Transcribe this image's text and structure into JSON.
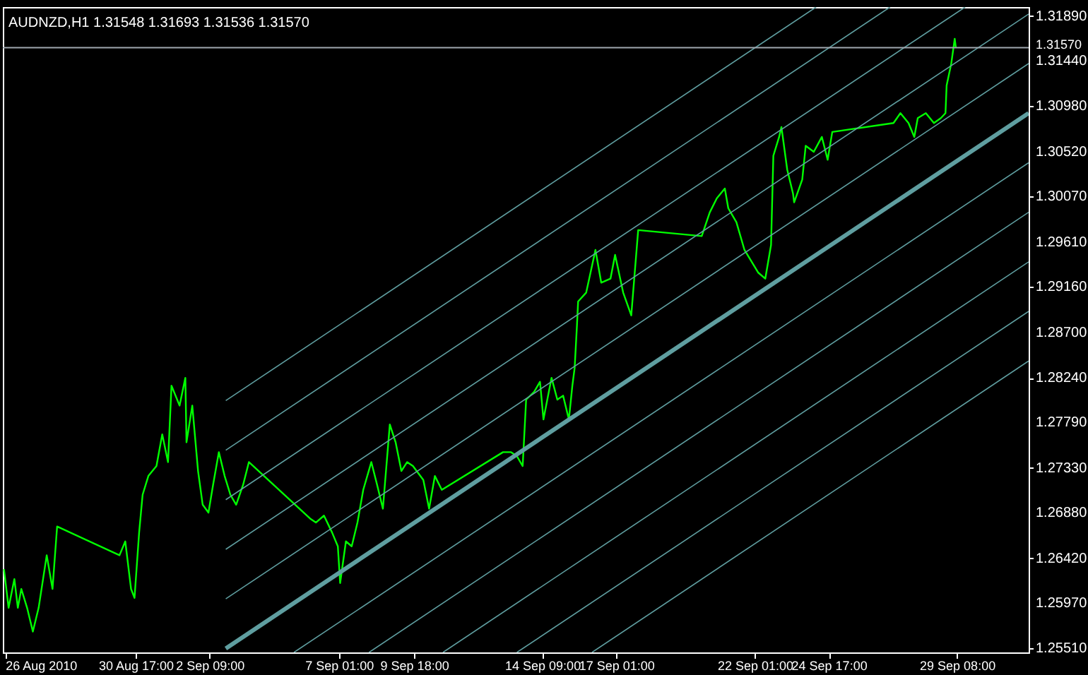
{
  "chart_data": {
    "type": "line",
    "title": "AUDNZD,H1  1.31548 1.31693 1.31536 1.31570",
    "xlim": [
      "2010-08-25T22:00",
      "2010-10-01T22:00"
    ],
    "ylim": [
      1.2547,
      1.3198
    ],
    "xticks": [
      {
        "value": "2010-08-26T00:00",
        "label": "26 Aug 2010"
      },
      {
        "value": "2010-08-30T17:00",
        "label": "30 Aug 17:00"
      },
      {
        "value": "2010-09-02T09:00",
        "label": "2 Sep 09:00"
      },
      {
        "value": "2010-09-07T01:00",
        "label": "7 Sep 01:00"
      },
      {
        "value": "2010-09-09T18:00",
        "label": "9 Sep 18:00"
      },
      {
        "value": "2010-09-14T09:00",
        "label": "14 Sep 09:00"
      },
      {
        "value": "2010-09-17T01:00",
        "label": "17 Sep 01:00"
      },
      {
        "value": "2010-09-22T01:00",
        "label": "22 Sep 01:00"
      },
      {
        "value": "2010-09-24T17:00",
        "label": "24 Sep 17:00"
      },
      {
        "value": "2010-09-29T08:00",
        "label": "29 Sep 08:00"
      }
    ],
    "yticks": [
      {
        "value": 1.3189,
        "label": "1.31890"
      },
      {
        "value": 1.3144,
        "label": "1.31440"
      },
      {
        "value": 1.3098,
        "label": "1.30980"
      },
      {
        "value": 1.3052,
        "label": "1.30520"
      },
      {
        "value": 1.3007,
        "label": "1.30070"
      },
      {
        "value": 1.2961,
        "label": "1.29610"
      },
      {
        "value": 1.2916,
        "label": "1.29160"
      },
      {
        "value": 1.287,
        "label": "1.28700"
      },
      {
        "value": 1.2824,
        "label": "1.28240"
      },
      {
        "value": 1.2779,
        "label": "1.27790"
      },
      {
        "value": 1.2733,
        "label": "1.27330"
      },
      {
        "value": 1.2688,
        "label": "1.26880"
      },
      {
        "value": 1.2642,
        "label": "1.26420"
      },
      {
        "value": 1.2597,
        "label": "1.25970"
      },
      {
        "value": 1.2551,
        "label": "1.25510"
      }
    ],
    "ref_lines": [
      {
        "axis": "y",
        "value": 1.3157,
        "label": "1.31570",
        "color": "#a0a8b0"
      }
    ],
    "series": [
      {
        "color": "#00ff00",
        "x": [
          "2010-08-25T23:00",
          "2010-08-26T03:00",
          "2010-08-26T08:00",
          "2010-08-26T11:00",
          "2010-08-26T14:00",
          "2010-08-26T19:00",
          "2010-08-27T00:00",
          "2010-08-27T05:00",
          "2010-08-27T12:00",
          "2010-08-27T17:00",
          "2010-08-27T21:00",
          "2010-08-30T03:00",
          "2010-08-30T08:00",
          "2010-08-30T13:00",
          "2010-08-30T16:00",
          "2010-08-30T20:00",
          "2010-08-30T23:00",
          "2010-08-31T04:00",
          "2010-08-31T11:00",
          "2010-08-31T16:00",
          "2010-08-31T21:00",
          "2010-09-01T00:00",
          "2010-09-01T07:00",
          "2010-09-01T12:00",
          "2010-09-01T13:00",
          "2010-09-01T18:00",
          "2010-09-01T23:00",
          "2010-09-02T03:00",
          "2010-09-02T08:00",
          "2010-09-02T12:00",
          "2010-09-02T17:00",
          "2010-09-02T22:00",
          "2010-09-03T03:00",
          "2010-09-03T08:00",
          "2010-09-03T14:00",
          "2010-09-03T19:00",
          "2010-09-06T00:00",
          "2010-09-06T05:00",
          "2010-09-06T12:00",
          "2010-09-06T19:00",
          "2010-09-07T00:00",
          "2010-09-07T02:00",
          "2010-09-07T07:00",
          "2010-09-07T12:00",
          "2010-09-07T17:00",
          "2010-09-07T22:00",
          "2010-09-08T05:00",
          "2010-09-08T10:00",
          "2010-09-08T15:00",
          "2010-09-08T21:00",
          "2010-09-09T02:00",
          "2010-09-09T07:00",
          "2010-09-09T12:00",
          "2010-09-09T17:00",
          "2010-09-10T02:00",
          "2010-09-10T07:00",
          "2010-09-10T12:00",
          "2010-09-10T18:00",
          "2010-09-12T23:00",
          "2010-09-13T06:00",
          "2010-09-13T11:00",
          "2010-09-13T16:00",
          "2010-09-13T19:00",
          "2010-09-14T02:00",
          "2010-09-14T07:00",
          "2010-09-14T10:00",
          "2010-09-14T17:00",
          "2010-09-14T22:00",
          "2010-09-15T03:00",
          "2010-09-15T08:00",
          "2010-09-15T11:00",
          "2010-09-15T13:00",
          "2010-09-15T15:00",
          "2010-09-15T16:00",
          "2010-09-15T23:00",
          "2010-09-16T07:00",
          "2010-09-16T12:00",
          "2010-09-16T20:00",
          "2010-09-17T00:00",
          "2010-09-17T07:00",
          "2010-09-17T14:00",
          "2010-09-17T20:00",
          "2010-09-20T03:00",
          "2010-09-20T10:00",
          "2010-09-20T16:00",
          "2010-09-20T23:00",
          "2010-09-21T02:00",
          "2010-09-21T09:00",
          "2010-09-21T16:00",
          "2010-09-22T04:00",
          "2010-09-22T10:00",
          "2010-09-22T15:00",
          "2010-09-22T17:00",
          "2010-09-22T22:00",
          "2010-09-23T00:00",
          "2010-09-23T05:00",
          "2010-09-23T10:00",
          "2010-09-23T11:00",
          "2010-09-23T18:00",
          "2010-09-23T21:00",
          "2010-09-24T04:00",
          "2010-09-24T11:00",
          "2010-09-24T16:00",
          "2010-09-24T20:00",
          "2010-09-27T01:00",
          "2010-09-27T07:00",
          "2010-09-27T14:00",
          "2010-09-27T19:00",
          "2010-09-27T22:00",
          "2010-09-28T05:00",
          "2010-09-28T12:00",
          "2010-09-28T18:00",
          "2010-09-28T22:00",
          "2010-09-28T23:00",
          "2010-09-29T03:00",
          "2010-09-29T06:00",
          "2010-09-29T07:00"
        ],
        "values": [
          1.2631,
          1.2592,
          1.2621,
          1.2592,
          1.2611,
          1.2592,
          1.2568,
          1.2592,
          1.2645,
          1.2611,
          1.2674,
          1.2645,
          1.2659,
          1.2611,
          1.2602,
          1.2668,
          1.2706,
          1.2725,
          1.2735,
          1.2767,
          1.2739,
          1.2816,
          1.2796,
          1.2824,
          1.2759,
          1.2796,
          1.273,
          1.2696,
          1.2688,
          1.2716,
          1.2749,
          1.2725,
          1.2706,
          1.2696,
          1.2716,
          1.2739,
          1.2682,
          1.2678,
          1.2685,
          1.2668,
          1.2654,
          1.2617,
          1.2659,
          1.2654,
          1.2678,
          1.2711,
          1.2739,
          1.2716,
          1.2692,
          1.2777,
          1.2759,
          1.273,
          1.2739,
          1.2735,
          1.2721,
          1.2692,
          1.2725,
          1.2711,
          1.2749,
          1.2749,
          1.2745,
          1.2735,
          1.2802,
          1.281,
          1.282,
          1.2782,
          1.2824,
          1.2802,
          1.2806,
          1.2782,
          1.2816,
          1.2834,
          1.2877,
          1.2901,
          1.291,
          1.2953,
          1.292,
          1.2924,
          1.2948,
          1.291,
          1.2887,
          1.2973,
          1.2967,
          1.2991,
          1.3005,
          1.3015,
          1.2995,
          1.2981,
          1.2953,
          1.293,
          1.2924,
          1.2958,
          1.3048,
          1.3067,
          1.3077,
          1.3034,
          1.301,
          1.3001,
          1.3024,
          1.3058,
          1.3052,
          1.3067,
          1.3044,
          1.3072,
          1.3081,
          1.3091,
          1.3081,
          1.3067,
          1.3086,
          1.3091,
          1.3081,
          1.3086,
          1.3091,
          1.3119,
          1.3141,
          1.3166,
          1.3157
        ]
      },
      {
        "color": "#5f9ea0",
        "x": [
          "2010-09-02T23:00",
          "2010-10-01T22:00"
        ],
        "values": [
          1.2551,
          1.3091
        ]
      },
      {
        "color": "#5f9ea0",
        "x": [
          "2010-09-02T23:00",
          "2010-10-01T22:00"
        ],
        "values": [
          1.2601,
          1.3141
        ]
      },
      {
        "color": "#5f9ea0",
        "x": [
          "2010-09-02T23:00",
          "2010-10-01T22:00"
        ],
        "values": [
          1.2651,
          1.3191
        ]
      },
      {
        "color": "#5f9ea0",
        "x": [
          "2010-09-02T23:00",
          "2010-09-29T15:00"
        ],
        "values": [
          1.2701,
          1.3198
        ]
      },
      {
        "color": "#5f9ea0",
        "x": [
          "2010-09-02T23:00",
          "2010-09-26T22:00"
        ],
        "values": [
          1.2751,
          1.3198
        ]
      },
      {
        "color": "#5f9ea0",
        "x": [
          "2010-09-02T23:00",
          "2010-09-24T06:00"
        ],
        "values": [
          1.2801,
          1.3198
        ]
      },
      {
        "color": "#5f9ea0",
        "x": [
          "2010-09-05T10:00",
          "2010-10-01T22:00"
        ],
        "values": [
          1.2547,
          1.3041
        ]
      },
      {
        "color": "#5f9ea0",
        "x": [
          "2010-09-08T03:00",
          "2010-10-01T22:00"
        ],
        "values": [
          1.2547,
          1.2991
        ]
      },
      {
        "color": "#5f9ea0",
        "x": [
          "2010-09-10T19:00",
          "2010-10-01T22:00"
        ],
        "values": [
          1.2547,
          1.2941
        ]
      },
      {
        "color": "#5f9ea0",
        "x": [
          "2010-09-13T11:00",
          "2010-10-01T22:00"
        ],
        "values": [
          1.2547,
          1.2891
        ]
      },
      {
        "color": "#5f9ea0",
        "x": [
          "2010-09-16T04:00",
          "2010-10-01T22:00"
        ],
        "values": [
          1.2547,
          1.2841
        ]
      }
    ]
  }
}
